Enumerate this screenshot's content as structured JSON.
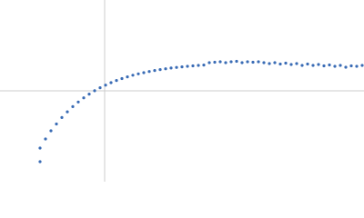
{
  "chart_data": {
    "type": "scatter",
    "color": "#3a6cb5",
    "grid": true,
    "xlim": [
      -115,
      285
    ],
    "ylim": [
      -100,
      100
    ],
    "xticks": [
      0
    ],
    "yticks": [
      0
    ],
    "x": [
      -71,
      -71,
      -65,
      -59,
      -53,
      -47,
      -41,
      -35,
      -29,
      -23,
      -17,
      -11,
      -5,
      1,
      7,
      13,
      19,
      25,
      31,
      37,
      43,
      49,
      55,
      61,
      67,
      73,
      79,
      85,
      91,
      97,
      103,
      109,
      115,
      121,
      127,
      133,
      139,
      145,
      151,
      157,
      163,
      169,
      175,
      181,
      187,
      193,
      199,
      205,
      211,
      217,
      223,
      229,
      235,
      241,
      247,
      253,
      259,
      265,
      271,
      277,
      283
    ],
    "values": [
      -78,
      -63,
      -53,
      -44,
      -36.5,
      -29.4,
      -23.1,
      -17.4,
      -12.3,
      -7.7,
      -3.6,
      0.1,
      3.4,
      6.3,
      9,
      11.4,
      13.5,
      15.4,
      17.2,
      18.7,
      20,
      21.3,
      22.4,
      23.4,
      24.3,
      25.1,
      25.8,
      26.4,
      27,
      27.5,
      28,
      28.4,
      31,
      31.5,
      32,
      31,
      32,
      32.5,
      31,
      32,
      31.5,
      32,
      31,
      30,
      31,
      29.5,
      30.5,
      29,
      30,
      28,
      29.5,
      28,
      29,
      27.5,
      28.5,
      27,
      28,
      26,
      27.5,
      27,
      28
    ]
  }
}
